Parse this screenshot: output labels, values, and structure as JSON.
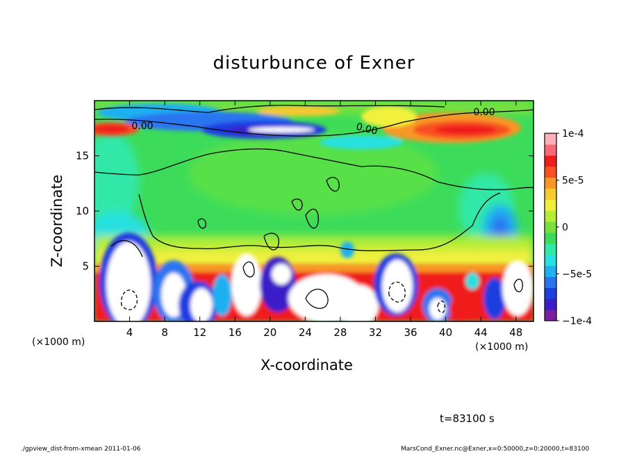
{
  "chart_data": {
    "type": "heatmap",
    "title": "disturbunce of Exner",
    "xlabel": "X-coordinate",
    "ylabel": "Z-coordinate",
    "x_unit": "(×1000 m)",
    "x_unit_right": "(×1000 m)",
    "xlim": [
      0,
      50
    ],
    "ylim": [
      0,
      20
    ],
    "x_ticks": [
      4,
      8,
      12,
      16,
      20,
      24,
      28,
      32,
      36,
      40,
      44,
      48
    ],
    "y_ticks": [
      5,
      10,
      15
    ],
    "colorbar": {
      "range": [
        -0.0001,
        0.0001
      ],
      "tick_values": [
        0.0001,
        5e-05,
        0,
        -5e-05,
        -0.0001
      ],
      "tick_labels": [
        "1e-4",
        "5e-5",
        "0",
        "−5e-5",
        "−1e-4"
      ],
      "colors": [
        "#7a1fa0",
        "#3a1fc8",
        "#1f3ee0",
        "#2a74f0",
        "#1fb0f0",
        "#28e0e0",
        "#30e8a8",
        "#3cdc5a",
        "#78e03c",
        "#b4ec38",
        "#f0f03c",
        "#f8c830",
        "#f89628",
        "#f85020",
        "#f01c1c",
        "#f86878",
        "#ffb0b8"
      ]
    },
    "contour_labels": [
      "0.00",
      "0.00",
      "0.00"
    ],
    "annotation_time": "t=83100 s"
  },
  "footer": {
    "left": "./gpview_dist-from-xmean  2011-01-06",
    "right": "MarsCond_Exner.nc@Exner,x=0:50000,z=0:20000,t=83100"
  }
}
